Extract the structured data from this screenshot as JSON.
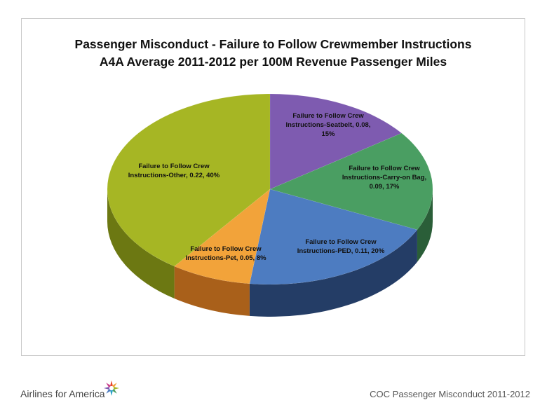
{
  "chart_data": {
    "type": "pie",
    "title": "Passenger Misconduct  - Failure to Follow Crewmember Instructions",
    "subtitle": "A4A Average 2011-2012 per 100M Revenue Passenger Miles",
    "slices": [
      {
        "name": "Failure to Follow Crew Instructions-Seatbelt",
        "value": 0.08,
        "percent": 15,
        "label_lines": [
          "Failure to Follow Crew",
          "Instructions-Seatbelt, 0.08,",
          "15%"
        ],
        "color": "#7e5bb0",
        "side": "#4e3472"
      },
      {
        "name": "Failure to Follow Crew Instructions-Carry-on Bag",
        "value": 0.09,
        "percent": 17,
        "label_lines": [
          "Failure to Follow Crew",
          "Instructions-Carry-on Bag,",
          "0.09, 17%"
        ],
        "color": "#4a9e62",
        "side": "#2a5e38"
      },
      {
        "name": "Failure to Follow Crew Instructions-PED",
        "value": 0.11,
        "percent": 20,
        "label_lines": [
          "Failure to Follow Crew",
          "Instructions-PED, 0.11, 20%"
        ],
        "color": "#4d7cc1",
        "side": "#243d66"
      },
      {
        "name": "Failure to Follow Crew Instructions-Pet",
        "value": 0.05,
        "percent": 8,
        "label_lines": [
          "Failure to Follow Crew",
          "Instructions-Pet, 0.05, 8%"
        ],
        "color": "#f2a33a",
        "side": "#a9601a"
      },
      {
        "name": "Failure to Follow Crew Instructions-Other",
        "value": 0.22,
        "percent": 40,
        "label_lines": [
          "Failure to Follow Crew",
          "Instructions-Other, 0.22, 40%"
        ],
        "color": "#a6b624",
        "side": "#6c7812"
      }
    ]
  },
  "footer": {
    "brand": "Airlines for America",
    "caption": "COC Passenger Misconduct 2011-2012"
  }
}
